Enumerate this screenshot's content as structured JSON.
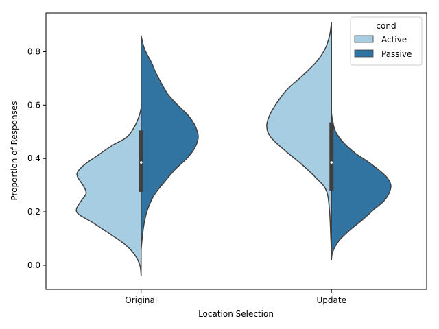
{
  "chart_data": {
    "type": "violin",
    "xlabel": "Location Selection",
    "ylabel": "Proportion of Responses",
    "categories": [
      "Original",
      "Update"
    ],
    "ylim": [
      -0.09,
      0.945
    ],
    "yticks": [
      0.0,
      0.2,
      0.4,
      0.6,
      0.8
    ],
    "ytick_labels": [
      "0.0",
      "0.2",
      "0.4",
      "0.6",
      "0.8"
    ],
    "grid": false,
    "legend": {
      "title": "cond",
      "position": "top-right"
    },
    "series": [
      {
        "name": "Active",
        "color": "#a6cde2",
        "violins": [
          {
            "category": "Original",
            "y_min": -0.04,
            "y_max": 0.59,
            "profile": [
              [
                -0.04,
                0.0
              ],
              [
                0.0,
                0.02
              ],
              [
                0.04,
                0.1
              ],
              [
                0.08,
                0.26
              ],
              [
                0.12,
                0.5
              ],
              [
                0.16,
                0.75
              ],
              [
                0.19,
                0.96
              ],
              [
                0.21,
                1.0
              ],
              [
                0.24,
                0.93
              ],
              [
                0.27,
                0.85
              ],
              [
                0.3,
                0.9
              ],
              [
                0.33,
                0.98
              ],
              [
                0.35,
                0.98
              ],
              [
                0.38,
                0.86
              ],
              [
                0.41,
                0.68
              ],
              [
                0.45,
                0.44
              ],
              [
                0.48,
                0.22
              ],
              [
                0.52,
                0.1
              ],
              [
                0.56,
                0.03
              ],
              [
                0.59,
                0.0
              ]
            ],
            "max_halfwidth_frac": 0.85
          },
          {
            "category": "Update",
            "y_min": 0.05,
            "y_max": 0.91,
            "profile": [
              [
                0.05,
                0.0
              ],
              [
                0.1,
                0.01
              ],
              [
                0.2,
                0.03
              ],
              [
                0.28,
                0.08
              ],
              [
                0.33,
                0.25
              ],
              [
                0.38,
                0.47
              ],
              [
                0.43,
                0.72
              ],
              [
                0.48,
                0.94
              ],
              [
                0.52,
                1.0
              ],
              [
                0.56,
                0.96
              ],
              [
                0.61,
                0.84
              ],
              [
                0.66,
                0.68
              ],
              [
                0.71,
                0.45
              ],
              [
                0.76,
                0.24
              ],
              [
                0.81,
                0.1
              ],
              [
                0.86,
                0.03
              ],
              [
                0.91,
                0.0
              ]
            ],
            "max_halfwidth_frac": 0.85
          }
        ]
      },
      {
        "name": "Passive",
        "color": "#3274a1",
        "violins": [
          {
            "category": "Original",
            "y_min": 0.06,
            "y_max": 0.86,
            "profile": [
              [
                0.06,
                0.0
              ],
              [
                0.14,
                0.04
              ],
              [
                0.2,
                0.1
              ],
              [
                0.26,
                0.22
              ],
              [
                0.31,
                0.4
              ],
              [
                0.36,
                0.6
              ],
              [
                0.4,
                0.8
              ],
              [
                0.44,
                0.94
              ],
              [
                0.48,
                1.0
              ],
              [
                0.52,
                0.95
              ],
              [
                0.56,
                0.83
              ],
              [
                0.6,
                0.64
              ],
              [
                0.64,
                0.47
              ],
              [
                0.68,
                0.36
              ],
              [
                0.72,
                0.26
              ],
              [
                0.76,
                0.18
              ],
              [
                0.81,
                0.06
              ],
              [
                0.86,
                0.0
              ]
            ],
            "max_halfwidth_frac": 0.75
          },
          {
            "category": "Update",
            "y_min": 0.02,
            "y_max": 0.57,
            "profile": [
              [
                0.02,
                0.0
              ],
              [
                0.05,
                0.02
              ],
              [
                0.09,
                0.12
              ],
              [
                0.13,
                0.3
              ],
              [
                0.17,
                0.52
              ],
              [
                0.21,
                0.72
              ],
              [
                0.24,
                0.88
              ],
              [
                0.27,
                0.97
              ],
              [
                0.3,
                1.0
              ],
              [
                0.33,
                0.93
              ],
              [
                0.36,
                0.78
              ],
              [
                0.39,
                0.6
              ],
              [
                0.42,
                0.4
              ],
              [
                0.46,
                0.2
              ],
              [
                0.5,
                0.07
              ],
              [
                0.54,
                0.02
              ],
              [
                0.57,
                0.0
              ]
            ],
            "max_halfwidth_frac": 0.78
          }
        ]
      }
    ],
    "box": [
      {
        "category": "Original",
        "q1": 0.275,
        "median": 0.385,
        "q3": 0.505,
        "whisker_low": 0.06,
        "whisker_high": 0.82
      },
      {
        "category": "Update",
        "q1": 0.28,
        "median": 0.385,
        "q3": 0.535,
        "whisker_low": 0.04,
        "whisker_high": 0.86
      }
    ]
  }
}
